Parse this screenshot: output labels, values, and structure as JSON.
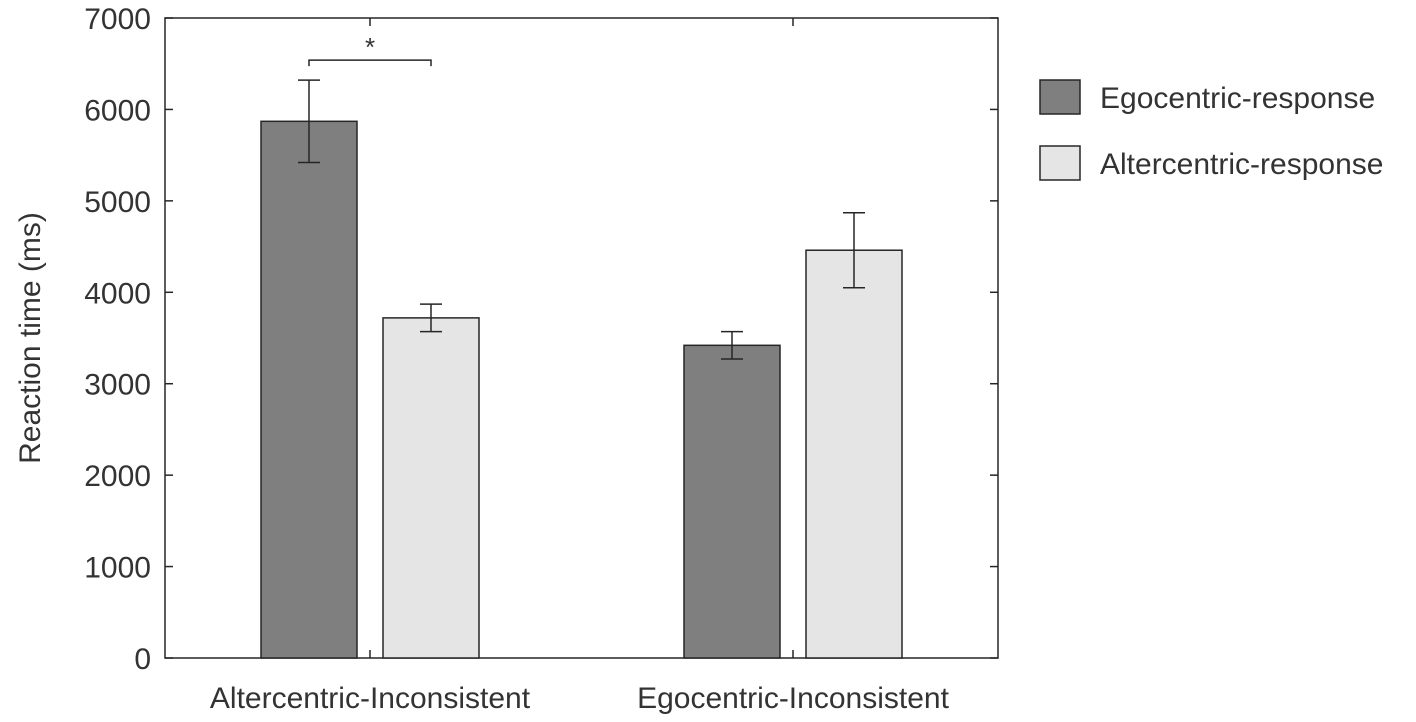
{
  "chart_data": {
    "type": "bar",
    "title": "",
    "xlabel": "",
    "ylabel": "Reaction time (ms)",
    "ylim": [
      0,
      7000
    ],
    "yticks": [
      0,
      1000,
      2000,
      3000,
      4000,
      5000,
      6000,
      7000
    ],
    "categories": [
      "Altercentric-Inconsistent",
      "Egocentric-Inconsistent"
    ],
    "series": [
      {
        "name": "Egocentric-response",
        "color": "#7f7f7f",
        "values": [
          5870,
          3420
        ],
        "errors": [
          450,
          150
        ]
      },
      {
        "name": "Altercentric-response",
        "color": "#e5e5e5",
        "values": [
          3720,
          4460
        ],
        "errors": [
          150,
          410
        ]
      }
    ],
    "annotations": [
      {
        "text": "*",
        "between": [
          "Egocentric-response",
          "Altercentric-response"
        ],
        "category": "Altercentric-Inconsistent"
      }
    ],
    "grid": false,
    "legend_position": "right"
  }
}
